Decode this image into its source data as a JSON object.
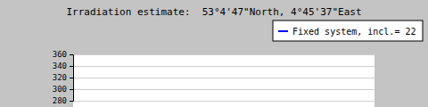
{
  "chart_data": {
    "type": "line",
    "title": "Irradiation estimate:  53°4'47\"North, 4°45'37\"East",
    "series": [
      {
        "name": "Fixed system, incl.= 22",
        "color": "#0000ff",
        "values": []
      }
    ],
    "categories": [],
    "ylim": [
      280,
      360
    ],
    "yticks": [
      280,
      300,
      320,
      340,
      360
    ],
    "grid": true,
    "legend": "top-right"
  }
}
